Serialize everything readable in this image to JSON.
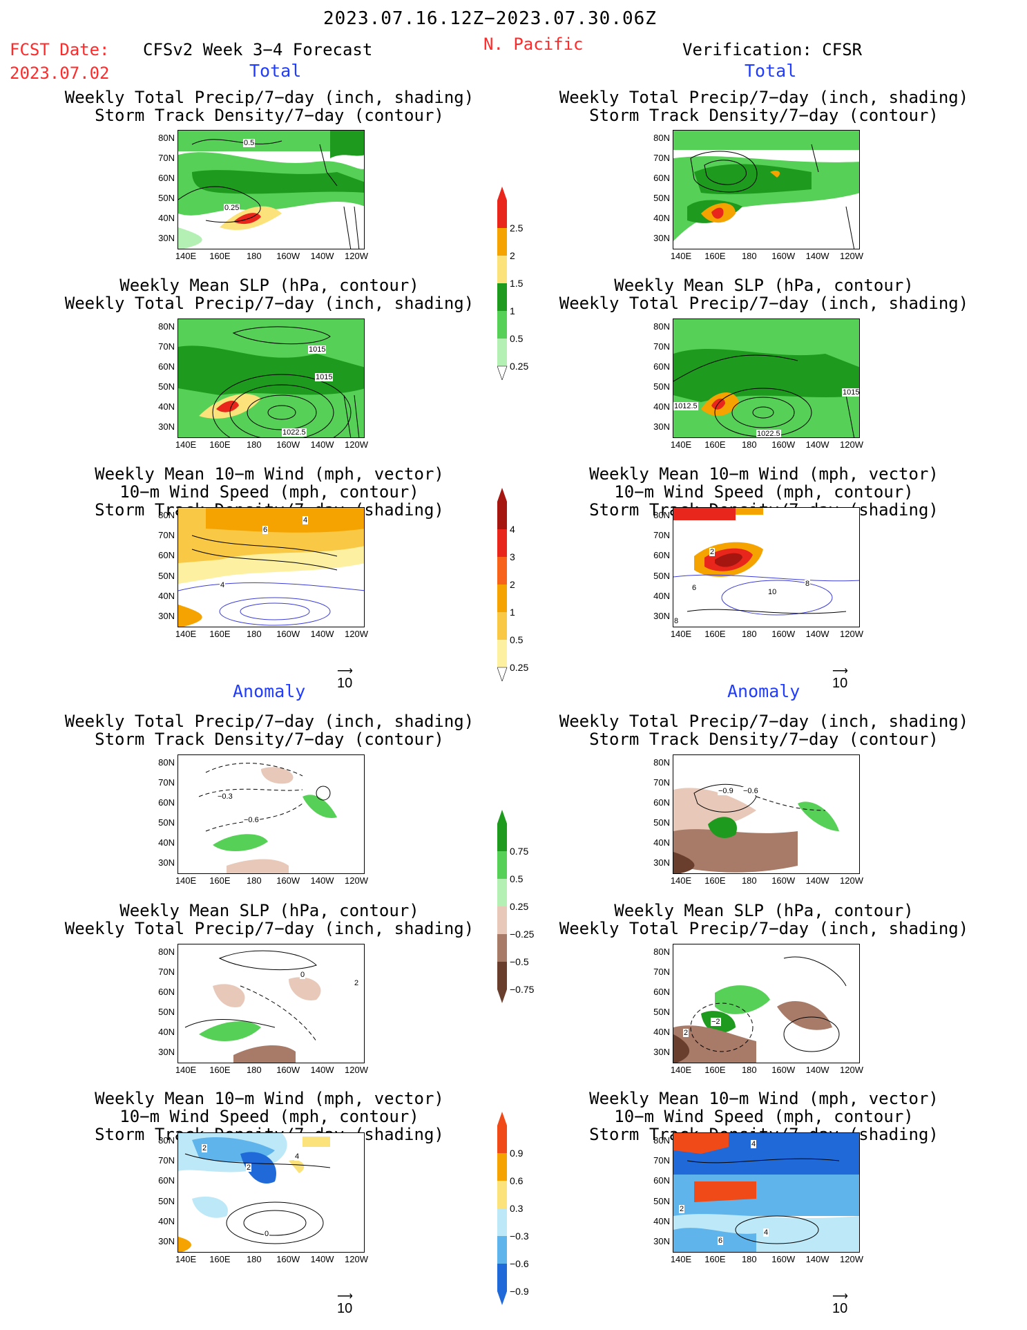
{
  "header": {
    "date_range": "2023.07.16.12Z−2023.07.30.06Z",
    "fcst_label": "FCST Date:",
    "fcst_date": "2023.07.02",
    "model_label": "CFSv2 Week 3−4 Forecast",
    "region": "N. Pacific",
    "verification": "Verification: CFSR"
  },
  "sections": {
    "total": "Total",
    "anomaly": "Anomaly"
  },
  "titles": {
    "precip_storm": [
      "Weekly Total Precip/7−day (inch, shading)",
      "Storm Track Density/7−day (contour)"
    ],
    "slp_precip": [
      "Weekly Mean SLP (hPa, contour)",
      "Weekly Total Precip/7−day (inch, shading)"
    ],
    "wind_storm": [
      "Weekly Mean 10−m Wind (mph, vector)",
      "10−m Wind Speed (mph, contour)",
      "Storm Track Density/7−day (shading)"
    ]
  },
  "axes": {
    "lat": [
      "80N",
      "70N",
      "60N",
      "50N",
      "40N",
      "30N"
    ],
    "lon": [
      "140E",
      "160E",
      "180",
      "160W",
      "140W",
      "120W"
    ]
  },
  "vector_ref": "10",
  "colorbars": {
    "precip_total": {
      "labels": [
        "2.5",
        "2",
        "1.5",
        "1",
        "0.5",
        "0.25"
      ],
      "colors": [
        "#e8261c",
        "#f5a300",
        "#fbe27a",
        "#1e9a1e",
        "#56d056",
        "#b4f0b4"
      ]
    },
    "storm_total": {
      "labels": [
        "4",
        "3",
        "2",
        "1",
        "0.5",
        "0.25"
      ],
      "colors": [
        "#a4160f",
        "#e8261c",
        "#f7631a",
        "#f5a300",
        "#f9c844",
        "#fdf0a0"
      ]
    },
    "precip_anom": {
      "labels": [
        "0.75",
        "0.5",
        "0.25",
        "−0.25",
        "−0.5",
        "−0.75"
      ],
      "colors": [
        "#1e9a1e",
        "#56d056",
        "#b4f0b4",
        "#e8c8b8",
        "#a87a68",
        "#6a3e2c"
      ]
    },
    "storm_anom": {
      "labels": [
        "0.9",
        "0.6",
        "0.3",
        "−0.3",
        "−0.6",
        "−0.9"
      ],
      "colors": [
        "#f04a18",
        "#f5a300",
        "#fbe27a",
        "#bde8f7",
        "#5fb4ec",
        "#1f6ad8"
      ]
    }
  },
  "contour_labels": {
    "fc_p1": [
      "0.5",
      "0.25"
    ],
    "fc_p2": [
      "1015",
      "1015",
      "1022.5"
    ],
    "fc_p3": [
      "6",
      "4",
      "4"
    ],
    "vf_p2": [
      "1012.5",
      "1015",
      "1022.5"
    ],
    "vf_p3": [
      "2",
      "6",
      "10",
      "8",
      "8"
    ],
    "fc_a1": [
      "−0.3",
      "−0.6"
    ],
    "vf_a1": [
      "−0.9",
      "−0.6"
    ],
    "fc_a2": [
      "0",
      "2"
    ],
    "vf_a2": [
      "−2",
      "2"
    ],
    "fc_a3": [
      "2",
      "2",
      "4",
      "0"
    ],
    "vf_a3": [
      "4",
      "2",
      "4",
      "6"
    ]
  }
}
